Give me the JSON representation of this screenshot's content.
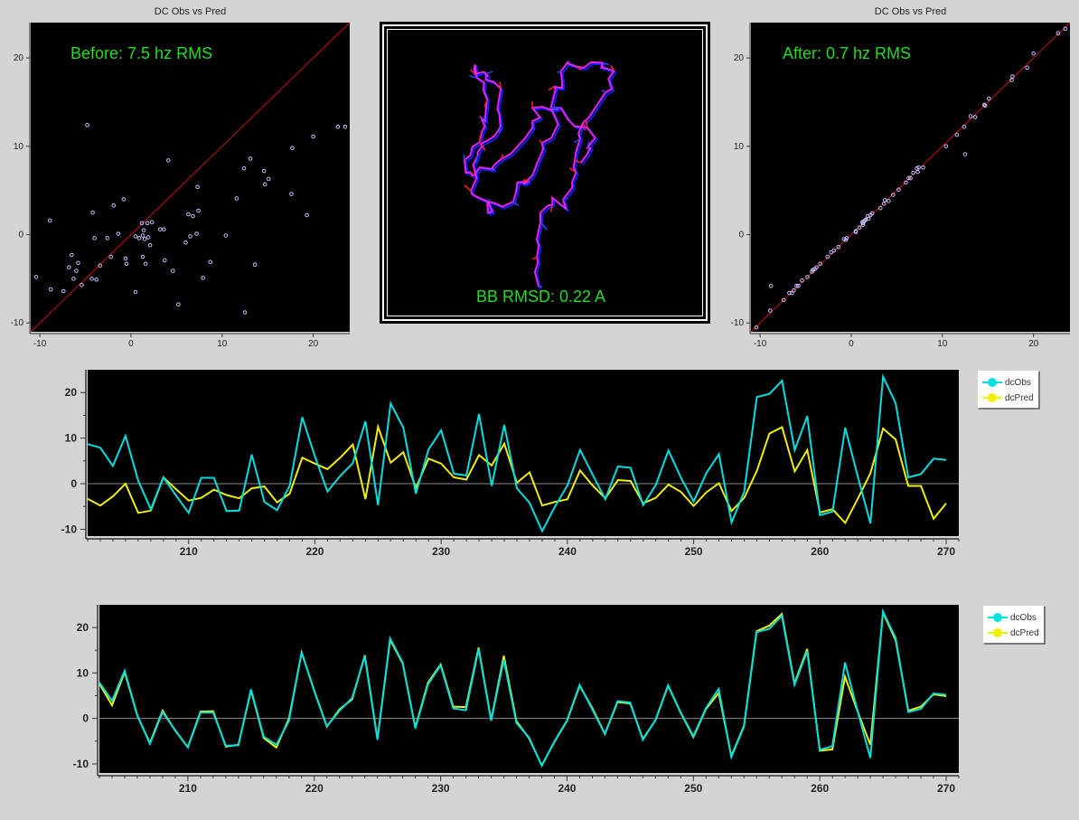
{
  "chart_data": [
    {
      "type": "scatter",
      "title": "DC Obs vs Pred",
      "annotation": "Before: 7.5 hz RMS",
      "xlim": [
        -11,
        24
      ],
      "ylim": [
        -11,
        24
      ],
      "xticks": [
        -10,
        0,
        10,
        20
      ],
      "yticks": [
        -10,
        0,
        10,
        20
      ],
      "diagonal": true,
      "points": [
        [
          -10.4,
          -4.8
        ],
        [
          -8.9,
          1.6
        ],
        [
          -8.8,
          -6.2
        ],
        [
          -7.4,
          -6.4
        ],
        [
          -6.8,
          -3.7
        ],
        [
          -6.5,
          -2.3
        ],
        [
          -6.3,
          -5.0
        ],
        [
          -6.0,
          -4.1
        ],
        [
          -5.8,
          -3.2
        ],
        [
          -5.4,
          -5.7
        ],
        [
          -4.8,
          12.4
        ],
        [
          -4.3,
          -5.0
        ],
        [
          -4.2,
          2.5
        ],
        [
          -4.0,
          -0.4
        ],
        [
          -3.8,
          -5.1
        ],
        [
          -3.4,
          -3.5
        ],
        [
          -2.6,
          -0.4
        ],
        [
          -2.2,
          -2.5
        ],
        [
          -1.9,
          3.3
        ],
        [
          -1.4,
          0.1
        ],
        [
          -0.8,
          4.0
        ],
        [
          -0.6,
          -2.7
        ],
        [
          -0.5,
          -3.3
        ],
        [
          0.5,
          -0.2
        ],
        [
          0.5,
          -6.5
        ],
        [
          0.9,
          -0.4
        ],
        [
          1.2,
          1.3
        ],
        [
          1.3,
          -0.1
        ],
        [
          1.3,
          -2.5
        ],
        [
          1.4,
          0.5
        ],
        [
          1.5,
          -0.5
        ],
        [
          1.6,
          -3.3
        ],
        [
          1.8,
          1.3
        ],
        [
          1.9,
          -0.3
        ],
        [
          2.1,
          -1.2
        ],
        [
          2.3,
          1.4
        ],
        [
          3.2,
          0.6
        ],
        [
          3.6,
          0.6
        ],
        [
          3.7,
          -2.9
        ],
        [
          4.1,
          8.4
        ],
        [
          4.6,
          -4.1
        ],
        [
          5.2,
          -7.9
        ],
        [
          6.0,
          -0.9
        ],
        [
          6.3,
          2.3
        ],
        [
          6.5,
          -0.2
        ],
        [
          6.8,
          2.1
        ],
        [
          7.2,
          0.1
        ],
        [
          7.3,
          5.4
        ],
        [
          7.4,
          2.7
        ],
        [
          7.9,
          -4.9
        ],
        [
          8.7,
          -3.1
        ],
        [
          10.4,
          -0.1
        ],
        [
          11.6,
          4.1
        ],
        [
          12.4,
          7.5
        ],
        [
          12.5,
          -8.8
        ],
        [
          13.1,
          8.6
        ],
        [
          13.6,
          -3.4
        ],
        [
          14.6,
          7.2
        ],
        [
          14.7,
          5.7
        ],
        [
          15.1,
          6.3
        ],
        [
          17.6,
          4.6
        ],
        [
          17.7,
          9.8
        ],
        [
          19.3,
          2.2
        ],
        [
          20.0,
          11.1
        ],
        [
          22.7,
          12.2
        ],
        [
          23.5,
          12.2
        ]
      ]
    },
    {
      "type": "scatter",
      "title": "DC Obs vs Pred",
      "annotation": "After: 0.7 hz RMS",
      "xlim": [
        -11,
        24
      ],
      "ylim": [
        -11,
        24
      ],
      "xticks": [
        -10,
        0,
        10,
        20
      ],
      "yticks": [
        -10,
        0,
        10,
        20
      ],
      "diagonal": true,
      "points": [
        [
          -10.4,
          -10.5
        ],
        [
          -8.9,
          -8.6
        ],
        [
          -8.8,
          -5.8
        ],
        [
          -7.4,
          -7.4
        ],
        [
          -6.8,
          -6.6
        ],
        [
          -6.5,
          -6.6
        ],
        [
          -6.3,
          -6.3
        ],
        [
          -6.0,
          -5.8
        ],
        [
          -5.8,
          -5.8
        ],
        [
          -5.4,
          -5.2
        ],
        [
          -4.8,
          -4.8
        ],
        [
          -4.3,
          -4.2
        ],
        [
          -4.2,
          -4.0
        ],
        [
          -4.0,
          -3.9
        ],
        [
          -3.8,
          -3.7
        ],
        [
          -3.4,
          -3.3
        ],
        [
          -2.6,
          -2.5
        ],
        [
          -2.2,
          -2.0
        ],
        [
          -1.9,
          -1.8
        ],
        [
          -1.4,
          -1.4
        ],
        [
          -0.8,
          -0.5
        ],
        [
          -0.6,
          -0.6
        ],
        [
          -0.5,
          -0.4
        ],
        [
          0.5,
          0.4
        ],
        [
          0.5,
          0.3
        ],
        [
          0.9,
          0.8
        ],
        [
          1.2,
          1.4
        ],
        [
          1.3,
          1.1
        ],
        [
          1.3,
          1.3
        ],
        [
          1.4,
          1.5
        ],
        [
          1.5,
          1.6
        ],
        [
          1.6,
          1.7
        ],
        [
          1.8,
          2.1
        ],
        [
          1.9,
          1.8
        ],
        [
          2.1,
          2.2
        ],
        [
          2.3,
          2.4
        ],
        [
          3.2,
          3.0
        ],
        [
          3.6,
          3.5
        ],
        [
          3.7,
          3.9
        ],
        [
          4.1,
          3.8
        ],
        [
          4.6,
          4.5
        ],
        [
          5.2,
          5.1
        ],
        [
          6.0,
          5.9
        ],
        [
          6.3,
          6.4
        ],
        [
          6.5,
          6.4
        ],
        [
          6.8,
          7.0
        ],
        [
          7.2,
          7.5
        ],
        [
          7.3,
          7.1
        ],
        [
          7.4,
          7.6
        ],
        [
          7.9,
          7.6
        ],
        [
          10.4,
          10.0
        ],
        [
          11.6,
          11.3
        ],
        [
          12.4,
          12.2
        ],
        [
          12.5,
          9.1
        ],
        [
          13.1,
          13.4
        ],
        [
          13.6,
          13.3
        ],
        [
          14.6,
          14.7
        ],
        [
          14.7,
          14.6
        ],
        [
          15.1,
          15.4
        ],
        [
          17.6,
          17.5
        ],
        [
          17.7,
          17.9
        ],
        [
          19.3,
          18.9
        ],
        [
          20.0,
          20.5
        ],
        [
          22.7,
          22.8
        ],
        [
          23.5,
          23.3
        ]
      ]
    },
    {
      "type": "line",
      "xlim": [
        202,
        271
      ],
      "ylim": [
        -11.5,
        25
      ],
      "xticks": [
        210,
        220,
        230,
        240,
        250,
        260,
        270
      ],
      "yticks": [
        -10,
        0,
        10,
        20
      ],
      "x": [
        202,
        203,
        204,
        205,
        206,
        207,
        208,
        209,
        210,
        211,
        212,
        213,
        214,
        215,
        216,
        217,
        218,
        219,
        220,
        221,
        222,
        223,
        224,
        225,
        226,
        227,
        228,
        229,
        230,
        231,
        232,
        233,
        234,
        235,
        236,
        237,
        238,
        239,
        240,
        241,
        242,
        243,
        244,
        245,
        246,
        247,
        248,
        249,
        250,
        251,
        252,
        253,
        254,
        255,
        256,
        257,
        258,
        259,
        260,
        261,
        262,
        263,
        264,
        265,
        266,
        267,
        268,
        269,
        270
      ],
      "series": [
        {
          "name": "dcObs",
          "color": "#00e0e0",
          "values": [
            8.7,
            7.9,
            3.9,
            10.5,
            0.7,
            -5.6,
            1.4,
            -2.6,
            -6.4,
            1.3,
            1.3,
            -6.0,
            -5.9,
            6.4,
            -4.0,
            -5.8,
            -0.5,
            14.6,
            6.0,
            -1.7,
            1.7,
            4.5,
            13.7,
            -4.7,
            17.6,
            12.3,
            -2.2,
            7.5,
            11.7,
            2.2,
            1.8,
            15.3,
            -0.5,
            12.9,
            -1.0,
            -4.2,
            -10.4,
            -5.1,
            -0.4,
            7.4,
            2.0,
            -3.4,
            3.8,
            3.5,
            -4.7,
            -0.3,
            7.3,
            1.3,
            -3.9,
            2.3,
            6.5,
            -8.5,
            -1.8,
            19.0,
            19.7,
            22.6,
            7.4,
            14.8,
            -6.9,
            -6.1,
            12.3,
            1.6,
            -8.7,
            23.5,
            17.7,
            1.4,
            2.1,
            5.5,
            5.2
          ]
        },
        {
          "name": "dcPred",
          "color": "#f0f000",
          "values": [
            -3.3,
            -4.8,
            -2.8,
            0.0,
            -6.4,
            -5.9,
            1.4,
            -1.2,
            -3.7,
            -3.1,
            -1.3,
            -2.5,
            -3.2,
            -1.0,
            -0.6,
            -4.1,
            -2.2,
            5.7,
            4.4,
            3.2,
            5.7,
            8.6,
            -3.4,
            12.5,
            4.6,
            6.9,
            -0.9,
            5.5,
            4.4,
            1.4,
            0.9,
            6.3,
            4.0,
            8.8,
            0.2,
            2.5,
            -4.8,
            -4.0,
            -3.4,
            2.9,
            -0.4,
            -3.2,
            0.8,
            0.6,
            -4.3,
            -3.1,
            -0.2,
            -1.8,
            -4.9,
            -1.9,
            0.1,
            -6.0,
            -3.1,
            2.8,
            11.0,
            12.4,
            2.7,
            7.4,
            -6.3,
            -5.6,
            -8.6,
            -3.3,
            2.3,
            12.1,
            9.7,
            -0.5,
            -0.5,
            -7.7,
            -4.3
          ]
        }
      ],
      "legend_position": "right"
    },
    {
      "type": "line",
      "xlim": [
        203,
        271
      ],
      "ylim": [
        -12,
        25
      ],
      "xticks": [
        210,
        220,
        230,
        240,
        250,
        260,
        270
      ],
      "yticks": [
        -10,
        0,
        10,
        20
      ],
      "x": [
        203,
        204,
        205,
        206,
        207,
        208,
        209,
        210,
        211,
        212,
        213,
        214,
        215,
        216,
        217,
        218,
        219,
        220,
        221,
        222,
        223,
        224,
        225,
        226,
        227,
        228,
        229,
        230,
        231,
        232,
        233,
        234,
        235,
        236,
        237,
        238,
        239,
        240,
        241,
        242,
        243,
        244,
        245,
        246,
        247,
        248,
        249,
        250,
        251,
        252,
        253,
        254,
        255,
        256,
        257,
        258,
        259,
        260,
        261,
        262,
        263,
        264,
        265,
        266,
        267,
        268,
        269,
        270
      ],
      "series": [
        {
          "name": "dcObs",
          "color": "#00e0e0",
          "values": [
            7.9,
            3.9,
            10.5,
            0.7,
            -5.6,
            1.4,
            -2.6,
            -6.4,
            1.3,
            1.3,
            -6.0,
            -5.9,
            6.4,
            -4.0,
            -5.8,
            -0.5,
            14.6,
            6.0,
            -1.7,
            1.7,
            4.5,
            13.7,
            -4.7,
            17.6,
            12.3,
            -2.2,
            7.5,
            11.7,
            2.2,
            1.8,
            15.3,
            -0.5,
            12.9,
            -1.0,
            -4.2,
            -10.4,
            -5.1,
            -0.4,
            7.4,
            2.0,
            -3.4,
            3.8,
            3.5,
            -4.7,
            -0.3,
            7.3,
            1.3,
            -3.9,
            2.3,
            6.5,
            -8.5,
            -1.8,
            19.0,
            19.7,
            22.6,
            7.4,
            14.8,
            -6.9,
            -6.1,
            12.3,
            1.6,
            -8.7,
            23.5,
            17.7,
            1.4,
            2.1,
            5.5,
            5.2
          ]
        },
        {
          "name": "dcPred",
          "color": "#f0f000",
          "values": [
            7.6,
            2.9,
            10.2,
            0.6,
            -5.4,
            1.7,
            -2.7,
            -6.3,
            1.5,
            1.6,
            -6.2,
            -5.8,
            6.2,
            -4.3,
            -6.4,
            0.0,
            14.5,
            6.1,
            -1.8,
            2.0,
            4.2,
            13.9,
            -4.5,
            17.3,
            12.1,
            -2.0,
            7.9,
            11.9,
            2.6,
            2.5,
            15.6,
            -0.4,
            13.8,
            -0.6,
            -4.4,
            -10.3,
            -5.2,
            -0.5,
            7.2,
            2.3,
            -3.4,
            3.6,
            3.3,
            -4.5,
            -0.4,
            7.2,
            1.2,
            -4.1,
            2.1,
            5.6,
            -8.3,
            -1.6,
            19.2,
            20.4,
            23.0,
            7.7,
            15.3,
            -7.1,
            -6.8,
            9.2,
            1.5,
            -5.8,
            23.3,
            17.2,
            1.7,
            2.6,
            5.3,
            4.9
          ]
        }
      ],
      "legend_position": "right"
    }
  ],
  "structure": {
    "annotation": "BB RMSD: 0.22 A"
  },
  "colors": {
    "plot_bg": "#000000",
    "window_bg": "#d4d4d4",
    "diagonal": "#cc1111",
    "scatter_point": "#c0c0ff",
    "annotation_text": "#22dd22",
    "obs": "#00e0e0",
    "pred": "#f0f000"
  }
}
